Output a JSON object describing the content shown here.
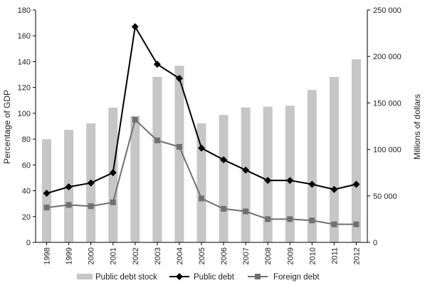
{
  "chart_data": {
    "type": "bar",
    "title": "",
    "categories": [
      "1998",
      "1999",
      "2000",
      "2001",
      "2002",
      "2003",
      "2004",
      "2005",
      "2006",
      "2007",
      "2008",
      "2009",
      "2010",
      "2011",
      "2012"
    ],
    "ylabel_left": "Percentage of GDP",
    "ylabel_right": "Millions of dollars",
    "ylim_left": [
      0,
      180
    ],
    "ylim_right": [
      0,
      250000
    ],
    "yticks_left": [
      "0",
      "20",
      "40",
      "60",
      "80",
      "100",
      "120",
      "140",
      "160",
      "180"
    ],
    "yticks_right": [
      "0",
      "50 000",
      "100 000",
      "150 000",
      "200 000",
      "250 000"
    ],
    "series": [
      {
        "name": "Public debt stock",
        "kind": "bar",
        "axis": "right",
        "color": "#c6c6c6",
        "values": [
          111000,
          121000,
          128000,
          145000,
          136000,
          178000,
          190000,
          128000,
          137000,
          145000,
          146000,
          147000,
          164000,
          178000,
          197000
        ]
      },
      {
        "name": "Public debt",
        "kind": "line",
        "marker": "diamond",
        "axis": "left",
        "color": "#000000",
        "values": [
          38,
          43,
          46,
          54,
          167,
          138,
          127,
          73,
          64,
          56,
          48,
          48,
          45,
          41,
          45
        ]
      },
      {
        "name": "Foreign debt",
        "kind": "line",
        "marker": "square",
        "axis": "left",
        "color": "#707070",
        "values": [
          27,
          29,
          28,
          31,
          95,
          79,
          74,
          34,
          26,
          24,
          18,
          18,
          17,
          14,
          14
        ]
      }
    ],
    "grid": false,
    "legend": "bottom"
  }
}
